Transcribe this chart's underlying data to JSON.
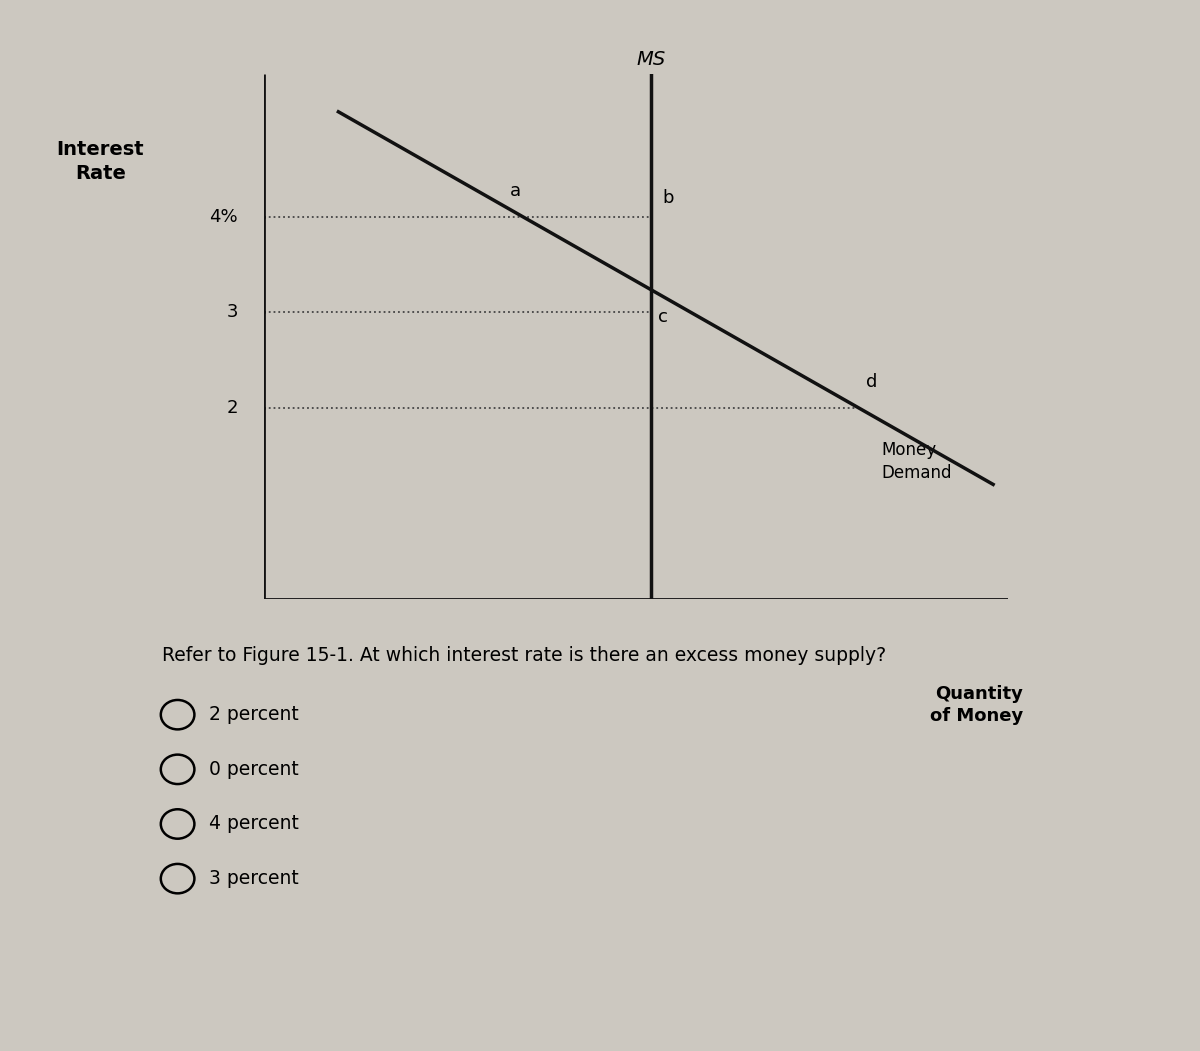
{
  "background_color": "#ccc8c0",
  "fig_width": 12.0,
  "fig_height": 10.51,
  "y_min": 0,
  "y_max": 5.5,
  "x_min": 0,
  "x_max": 10,
  "ms_x": 5.2,
  "ms_label": "MS",
  "demand_x_start": 1.0,
  "demand_y_start": 5.1,
  "demand_x_end": 9.8,
  "demand_y_end": 1.2,
  "ytick_vals": [
    2,
    3,
    4
  ],
  "ytick_labels": [
    "2",
    "3",
    "4%"
  ],
  "point_labels": [
    "a",
    "b",
    "c",
    "d"
  ],
  "money_demand_label": "Money\nDemand",
  "quantity_label": "Quantity\nof Money",
  "interest_rate_label": "Interest\nRate",
  "ms_italic": true,
  "question_text": "Refer to Figure 15-1. At which interest rate is there an excess money supply?",
  "choices": [
    "2 percent",
    "0 percent",
    "4 percent",
    "3 percent"
  ],
  "line_color": "#111111",
  "dotted_color": "#444444"
}
